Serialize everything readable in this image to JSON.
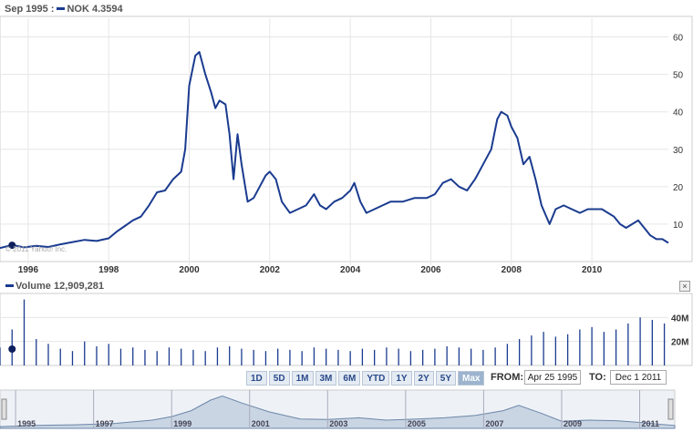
{
  "price_header": {
    "date": "Sep 1995",
    "ticker": "NOK",
    "value": "4.3594"
  },
  "volume_header": {
    "label": "Volume",
    "value": "12,909,281"
  },
  "watermark": "© 2011 Yahoo! Inc.",
  "close_symbol": "×",
  "range_buttons": [
    "1D",
    "5D",
    "1M",
    "3M",
    "6M",
    "YTD",
    "1Y",
    "2Y",
    "5Y",
    "Max"
  ],
  "active_range": "Max",
  "from": {
    "label": "FROM:",
    "value": "Apr 25 1995"
  },
  "to": {
    "label": "TO:",
    "value": "Dec 1 2011"
  },
  "colors": {
    "line": "#1a3b8f",
    "bar": "#1a3b8f",
    "navigator_fill": "#c9d5e3",
    "navigator_line": "#6d86a8",
    "grid": "#e6e6e6"
  },
  "chart_data": [
    {
      "type": "line",
      "title": "",
      "xlabel": "",
      "ylabel": "",
      "xlim": [
        1995.3,
        2011.9
      ],
      "ylim": [
        0,
        65
      ],
      "x_ticks": [
        1996,
        1998,
        2000,
        2002,
        2004,
        2006,
        2008,
        2010
      ],
      "y_ticks": [
        10,
        20,
        30,
        40,
        50,
        60
      ],
      "grid": true,
      "marker": {
        "x": 1995.6,
        "y": 4.36
      },
      "series": [
        {
          "name": "NOK",
          "x": [
            1995.3,
            1995.6,
            1995.9,
            1996.2,
            1996.5,
            1996.8,
            1997.1,
            1997.4,
            1997.7,
            1998.0,
            1998.2,
            1998.4,
            1998.6,
            1998.8,
            1999.0,
            1999.2,
            1999.4,
            1999.6,
            1999.8,
            1999.9,
            2000.0,
            2000.15,
            2000.25,
            2000.4,
            2000.55,
            2000.65,
            2000.75,
            2000.9,
            2001.0,
            2001.1,
            2001.2,
            2001.3,
            2001.45,
            2001.6,
            2001.75,
            2001.9,
            2002.0,
            2002.15,
            2002.3,
            2002.5,
            2002.7,
            2002.9,
            2003.1,
            2003.25,
            2003.4,
            2003.6,
            2003.8,
            2004.0,
            2004.1,
            2004.25,
            2004.4,
            2004.6,
            2004.8,
            2005.0,
            2005.3,
            2005.6,
            2005.9,
            2006.1,
            2006.3,
            2006.5,
            2006.7,
            2006.9,
            2007.1,
            2007.3,
            2007.5,
            2007.65,
            2007.75,
            2007.9,
            2008.0,
            2008.15,
            2008.3,
            2008.45,
            2008.6,
            2008.75,
            2008.95,
            2009.1,
            2009.3,
            2009.5,
            2009.7,
            2009.9,
            2010.1,
            2010.25,
            2010.4,
            2010.55,
            2010.7,
            2010.85,
            2011.0,
            2011.15,
            2011.3,
            2011.45,
            2011.6,
            2011.75,
            2011.9
          ],
          "values": [
            3.6,
            4.4,
            3.8,
            4.2,
            3.9,
            4.6,
            5.2,
            5.8,
            5.5,
            6.2,
            8,
            9.5,
            11,
            12,
            15,
            18.5,
            19,
            22,
            24,
            30,
            47,
            55,
            56,
            50,
            45,
            41,
            43,
            42,
            34,
            22,
            34,
            26,
            16,
            17,
            20,
            23,
            24,
            22,
            16,
            13,
            14,
            15,
            18,
            15,
            14,
            16,
            17,
            19,
            21,
            16,
            13,
            14,
            15,
            16,
            16,
            17,
            17,
            18,
            21,
            22,
            20,
            19,
            22,
            26,
            30,
            38,
            40,
            39,
            36,
            33,
            26,
            28,
            22,
            15,
            10,
            14,
            15,
            14,
            13,
            14,
            14,
            14,
            13,
            12,
            10,
            9,
            10,
            11,
            9,
            7,
            6,
            6,
            5
          ]
        }
      ]
    },
    {
      "type": "bar",
      "title": "",
      "xlabel": "",
      "ylabel": "",
      "xlim": [
        1995.3,
        2011.9
      ],
      "ylim": [
        0,
        60
      ],
      "y_ticks": [
        20,
        40
      ],
      "y_tick_labels": [
        "20M",
        "40M"
      ],
      "grid": true,
      "series": [
        {
          "name": "Volume",
          "x": [
            1995.3,
            1995.6,
            1995.9,
            1996.2,
            1996.5,
            1996.8,
            1997.1,
            1997.4,
            1997.7,
            1998.0,
            1998.3,
            1998.6,
            1998.9,
            1999.2,
            1999.5,
            1999.8,
            2000.1,
            2000.4,
            2000.7,
            2001.0,
            2001.3,
            2001.6,
            2001.9,
            2002.2,
            2002.5,
            2002.8,
            2003.1,
            2003.4,
            2003.7,
            2004.0,
            2004.3,
            2004.6,
            2004.9,
            2005.2,
            2005.5,
            2005.8,
            2006.1,
            2006.4,
            2006.7,
            2007.0,
            2007.3,
            2007.6,
            2007.9,
            2008.2,
            2008.5,
            2008.8,
            2009.1,
            2009.4,
            2009.7,
            2010.0,
            2010.3,
            2010.6,
            2010.9,
            2011.2,
            2011.5,
            2011.8
          ],
          "values": [
            15,
            30,
            55,
            22,
            18,
            14,
            12,
            20,
            16,
            18,
            14,
            15,
            13,
            12,
            15,
            14,
            13,
            12,
            15,
            16,
            14,
            13,
            12,
            14,
            13,
            12,
            15,
            14,
            13,
            12,
            14,
            13,
            15,
            14,
            12,
            13,
            14,
            16,
            15,
            14,
            13,
            15,
            18,
            22,
            25,
            28,
            24,
            26,
            30,
            32,
            28,
            30,
            35,
            40,
            38,
            35
          ]
        }
      ]
    },
    {
      "type": "area",
      "title": "",
      "x_tick_labels": [
        "1995",
        "1997",
        "1999",
        "2001",
        "2003",
        "2005",
        "2007",
        "2009",
        "2011"
      ],
      "x_ticks": [
        1995,
        1997,
        1999,
        2001,
        2003,
        2005,
        2007,
        2009,
        2011
      ],
      "xlim": [
        1994.6,
        2011.9
      ],
      "ylim": [
        0,
        65
      ],
      "series": [
        {
          "name": "NOK",
          "x": [
            1994.6,
            1995.5,
            1996.5,
            1997.5,
            1998.5,
            1999.0,
            1999.5,
            2000.0,
            2000.3,
            2000.8,
            2001.5,
            2002.3,
            2003.0,
            2003.8,
            2004.5,
            2005.3,
            2006.0,
            2006.8,
            2007.5,
            2007.9,
            2008.5,
            2009.0,
            2009.7,
            2010.4,
            2011.0,
            2011.5,
            2011.9
          ],
          "values": [
            3,
            5,
            6,
            8,
            14,
            20,
            30,
            48,
            55,
            43,
            28,
            16,
            15,
            18,
            14,
            16,
            18,
            22,
            30,
            39,
            25,
            12,
            14,
            13,
            10,
            7,
            5
          ]
        }
      ]
    }
  ]
}
